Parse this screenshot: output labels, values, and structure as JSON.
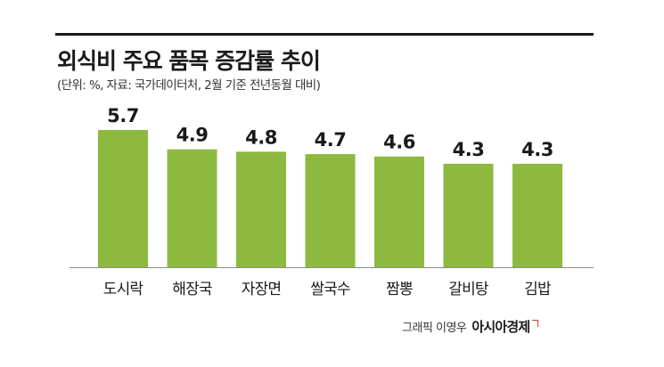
{
  "header": {
    "title": "외식비 주요 품목 증감률 추이",
    "subtitle": "(단위: %, 자료: 국가데이터처, 2월 기준 전년동월 대비)"
  },
  "footer": {
    "credit": "그래픽 이영우",
    "brand": "아시아경제"
  },
  "colors": {
    "bar": "#8db93f",
    "text": "#1a1a1a",
    "baseline": "#8a8a8a",
    "brand_mark": "#d23a2a"
  },
  "chart_data": {
    "type": "bar",
    "categories": [
      "도시락",
      "해장국",
      "자장면",
      "쌀국수",
      "짬뽕",
      "갈비탕",
      "김밥"
    ],
    "values": [
      5.7,
      4.9,
      4.8,
      4.7,
      4.6,
      4.3,
      4.3
    ],
    "value_labels": [
      "5.7",
      "4.9",
      "4.8",
      "4.7",
      "4.6",
      "4.3",
      "4.3"
    ],
    "title": "외식비 주요 품목 증감률 추이",
    "xlabel": "",
    "ylabel": "",
    "ylim": [
      0,
      5.7
    ],
    "grid": false,
    "legend": "none"
  }
}
